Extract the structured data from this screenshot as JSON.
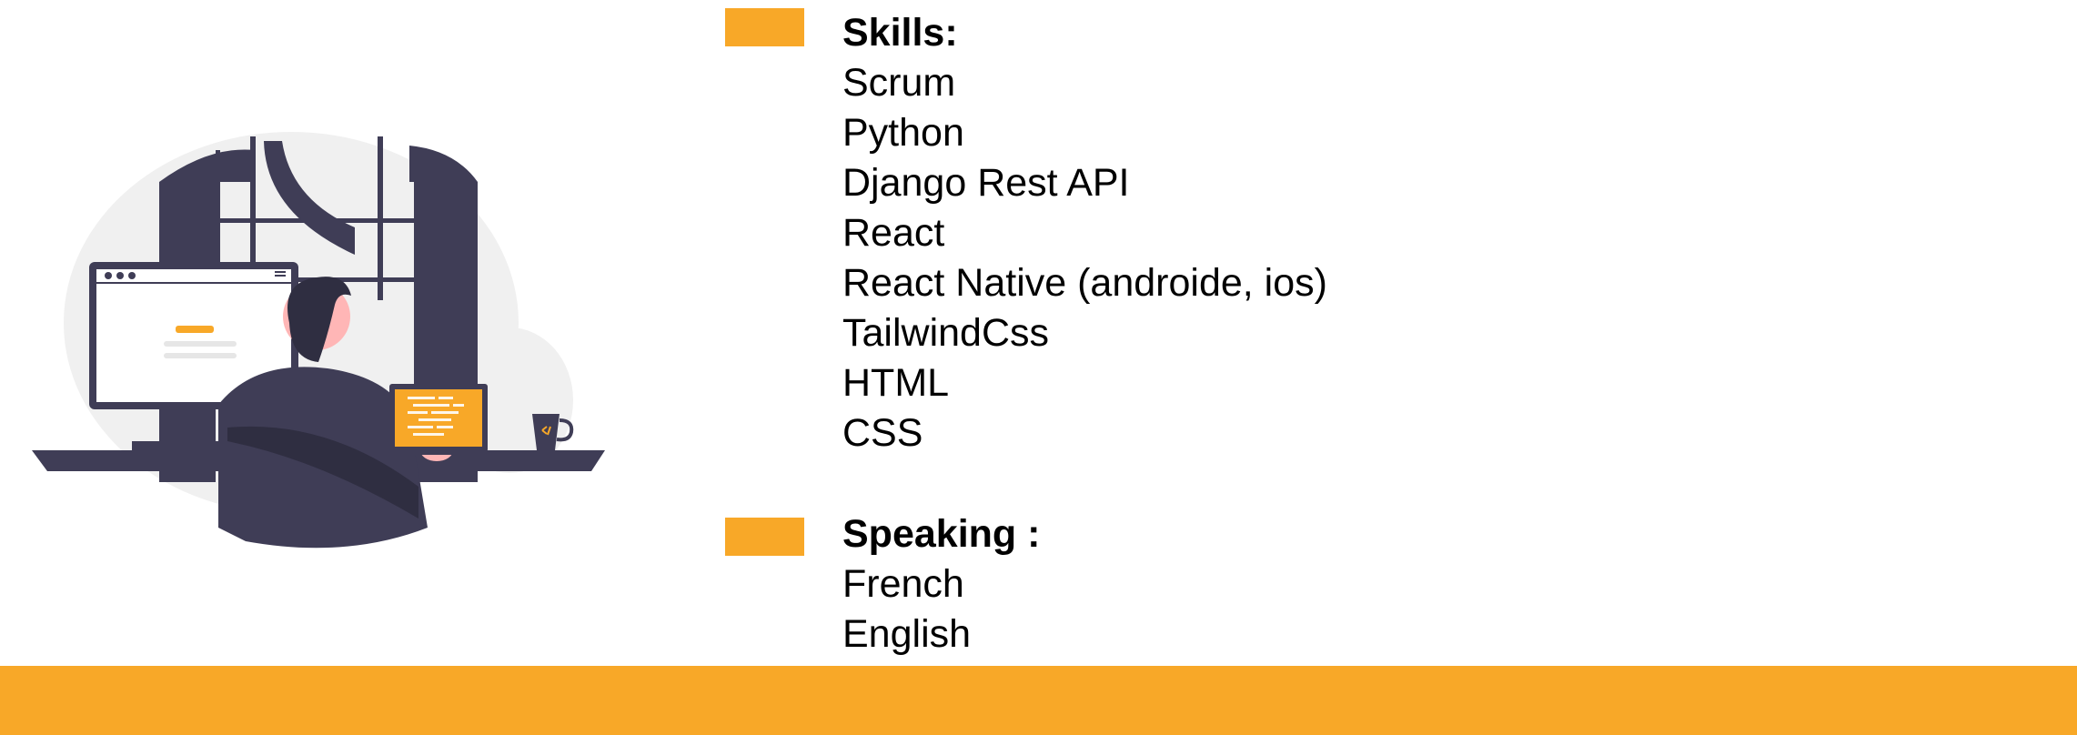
{
  "colors": {
    "accent": "#F8A828",
    "dark": "#3F3D56",
    "light_gray": "#F0F0F0",
    "skin": "#FFB6B6"
  },
  "illustration": {
    "icon": "developer-at-desk-illustration-icon"
  },
  "skills": {
    "heading": "Skills:",
    "items": [
      "Scrum",
      "Python",
      "Django Rest API",
      "React",
      "React Native (androide, ios)",
      "TailwindCss",
      "HTML",
      "CSS"
    ]
  },
  "speaking": {
    "heading": "Speaking :",
    "items": [
      "French",
      "English"
    ]
  }
}
